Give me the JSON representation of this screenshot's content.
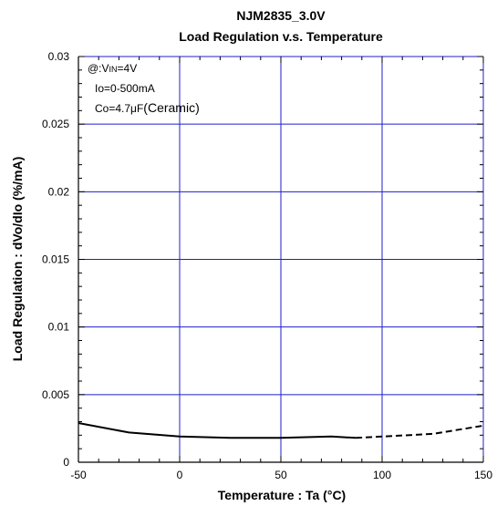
{
  "chart_data": {
    "type": "line",
    "title": "NJM2835_3.0V",
    "subtitle": "Load Regulation v.s. Temperature",
    "xlabel": "Temperature : Ta (°C)",
    "ylabel": "Load Regulation : dVo/dIo (%/mA)",
    "xlim": [
      -50,
      150
    ],
    "ylim": [
      0,
      0.03
    ],
    "x_ticks": [
      "-50",
      "0",
      "50",
      "100",
      "150"
    ],
    "y_ticks": [
      "0",
      "0.005",
      "0.01",
      "0.015",
      "0.02",
      "0.025",
      "0.03"
    ],
    "grid": true,
    "annotations": {
      "line1_prefix": "@:V",
      "line1_sub": "IN",
      "line1_suffix": "=4V",
      "line2": "Io=0-500mA",
      "line3_prefix": "Co=4.7",
      "line3_mu": "μ",
      "line3_unit": "F",
      "line3_suffix": "(Ceramic)"
    },
    "series": [
      {
        "style": "solid",
        "color": "#000000",
        "x": [
          -50,
          -25,
          0,
          25,
          50,
          75,
          87
        ],
        "y": [
          0.0029,
          0.0022,
          0.0019,
          0.0018,
          0.0018,
          0.0019,
          0.0018
        ]
      },
      {
        "style": "dashed",
        "color": "#000000",
        "x": [
          87,
          100,
          125,
          150
        ],
        "y": [
          0.0018,
          0.0019,
          0.0021,
          0.0027
        ]
      }
    ],
    "colors": {
      "grid": "#1f1fcc",
      "axis": "#000000"
    }
  }
}
